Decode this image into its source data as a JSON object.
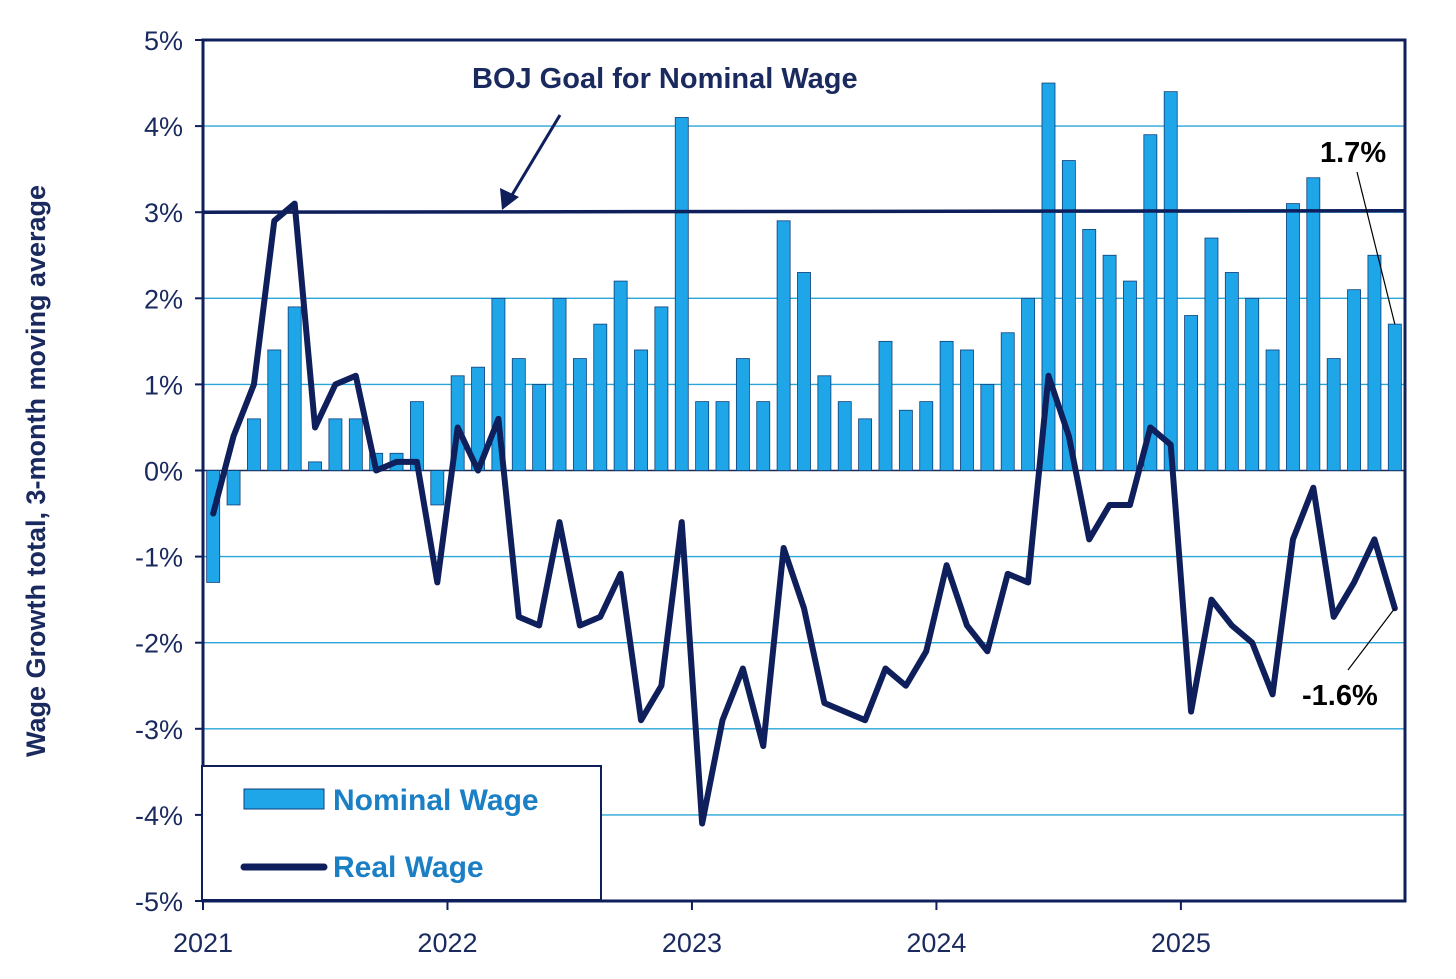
{
  "chart_data": {
    "type": "bar+line",
    "title": "",
    "ylabel": "Wage Growth total, 3-month moving average",
    "xlabel": "",
    "ylim": [
      -5,
      5
    ],
    "yticks": [
      5,
      4,
      3,
      2,
      1,
      0,
      -1,
      -2,
      -3,
      -4,
      -5
    ],
    "ytick_labels": [
      "5%",
      "4%",
      "3%",
      "2%",
      "1%",
      "0%",
      "-1%",
      "-2%",
      "-3%",
      "-4%",
      "-5%"
    ],
    "xtick_labels": [
      "2021",
      "2022",
      "2023",
      "2024",
      "2025"
    ],
    "xtick_month_index": [
      0,
      12,
      24,
      36,
      48
    ],
    "n_months": 59,
    "grid": true,
    "series": [
      {
        "name": "Nominal Wage",
        "type": "bar",
        "color": "#1fa6e8",
        "values": [
          -1.3,
          -0.4,
          0.6,
          1.4,
          1.9,
          0.1,
          0.6,
          0.6,
          0.2,
          0.2,
          0.8,
          -0.4,
          1.1,
          1.2,
          2.0,
          1.3,
          1.0,
          2.0,
          1.3,
          1.7,
          2.2,
          1.4,
          1.9,
          4.1,
          0.8,
          0.8,
          1.3,
          0.8,
          2.9,
          2.3,
          1.1,
          0.8,
          0.6,
          1.5,
          0.7,
          0.8,
          1.5,
          1.4,
          1.0,
          1.6,
          2.0,
          4.5,
          3.6,
          2.8,
          2.5,
          2.2,
          3.9,
          4.4,
          1.8,
          2.7,
          2.3,
          2.0,
          1.4,
          3.1,
          3.4,
          1.3,
          2.1,
          2.5,
          1.7
        ]
      },
      {
        "name": "Real Wage",
        "type": "line",
        "color": "#0f1f5c",
        "values": [
          -0.5,
          0.4,
          1.0,
          2.9,
          3.1,
          0.5,
          1.0,
          1.1,
          0.0,
          0.1,
          0.1,
          -1.3,
          0.5,
          0.0,
          0.6,
          -1.7,
          -1.8,
          -0.6,
          -1.8,
          -1.7,
          -1.2,
          -2.9,
          -2.5,
          -0.6,
          -4.1,
          -2.9,
          -2.3,
          -3.2,
          -0.9,
          -1.6,
          -2.7,
          -2.8,
          -2.9,
          -2.3,
          -2.5,
          -2.1,
          -1.1,
          -1.8,
          -2.1,
          -1.2,
          -1.3,
          1.1,
          0.4,
          -0.8,
          -0.4,
          -0.4,
          0.5,
          0.3,
          -2.8,
          -1.5,
          -1.8,
          -2.0,
          -2.6,
          -0.8,
          -0.2,
          -1.7,
          -1.3,
          -0.8,
          -1.6
        ]
      }
    ],
    "reference_line": {
      "value": 3.0,
      "label": "BOJ Goal for Nominal Wage"
    },
    "end_labels": {
      "nominal": "1.7%",
      "real": "-1.6%"
    },
    "legend": {
      "position": "bottom-left",
      "entries": [
        "Nominal Wage",
        "Real Wage"
      ]
    }
  },
  "colors": {
    "bar": "#1fa6e8",
    "line": "#0f1f5c",
    "grid": "#2aa5d8",
    "axis": "#0f1f5c",
    "legend_text": "#1a7fc4"
  }
}
